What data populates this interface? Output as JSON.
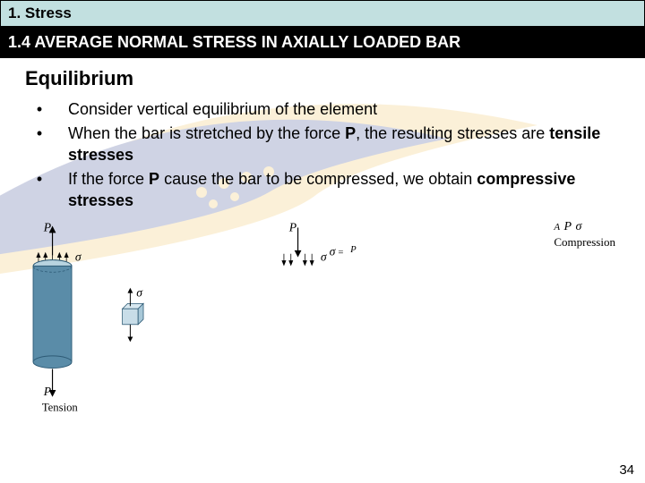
{
  "header": {
    "chapter": "1. Stress",
    "section": "1.4 AVERAGE NORMAL STRESS IN AXIALLY LOADED BAR"
  },
  "subtitle": "Equilibrium",
  "bullets": [
    {
      "marker": "•",
      "text": "Consider vertical equilibrium of the element"
    },
    {
      "marker": "•",
      "html": "When the bar is stretched by the force <b>P</b>, the resulting stresses are <b>tensile stresses</b>"
    },
    {
      "marker": "•",
      "html": "If the force <b>P</b> cause the bar to be compressed, we obtain <b>compressive stresses</b>"
    }
  ],
  "diagram": {
    "force_symbol": "P",
    "stress_symbol": "σ",
    "formula_num": "P",
    "formula_den": "A",
    "captions": {
      "left": "Tension",
      "right": "Compression"
    },
    "bar_fill": "#5a8ca8",
    "bar_edge": "#2d5a75",
    "ellipse_fill": "#b8d4e0",
    "cube_fill": "#c8dde8",
    "arrow_head_h": 8
  },
  "page_number": "34",
  "swoosh": {
    "outer": "#f0c050",
    "inner": "#2a3a8a"
  }
}
